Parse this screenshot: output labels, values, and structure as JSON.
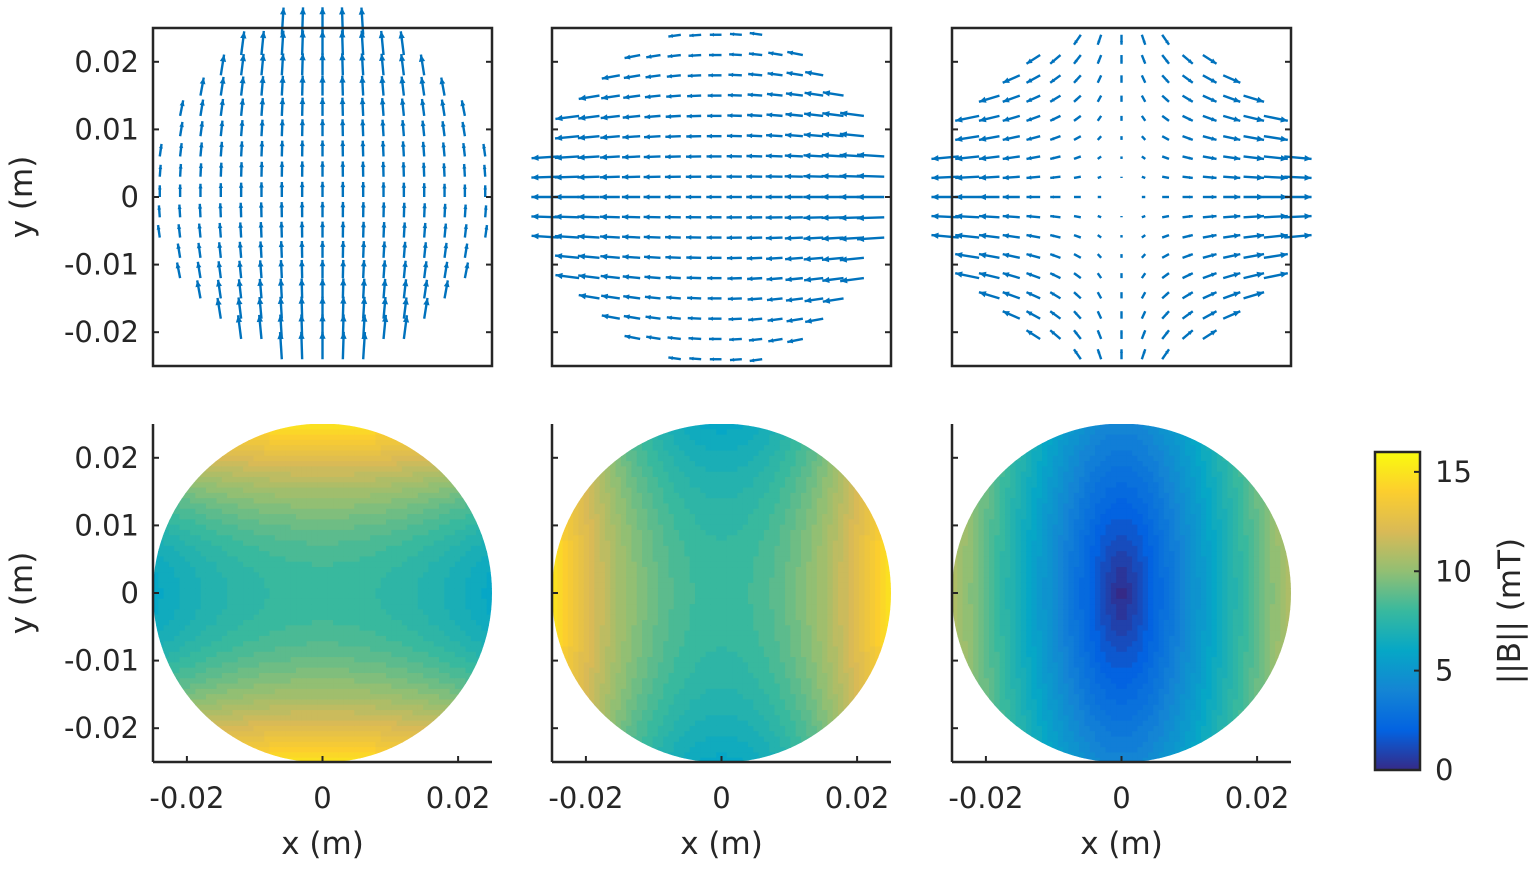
{
  "chart_data": [
    {
      "type": "quiver",
      "panel": "top-left",
      "xlim": [
        -0.025,
        0.025
      ],
      "ylim": [
        -0.025,
        0.025
      ],
      "ylabel": "y (m)",
      "yticks": [
        "0.02",
        "0.01",
        "0",
        "-0.01",
        "-0.02"
      ],
      "ytick_values": [
        0.02,
        0.01,
        0,
        -0.01,
        -0.02
      ],
      "grid_step": 0.003,
      "domain": "disk radius 0.025 m",
      "color": "#0072BD",
      "field_mT": {
        "Bx": {
          "xy": -6400
        },
        "By": {
          "const": 8,
          "x2": -3200,
          "y2": 11200
        }
      }
    },
    {
      "type": "quiver",
      "panel": "top-middle",
      "xlim": [
        -0.025,
        0.025
      ],
      "ylim": [
        -0.025,
        0.025
      ],
      "grid_step": 0.003,
      "domain": "disk radius 0.025 m",
      "color": "#0072BD",
      "field_mT": {
        "Bx": {
          "const": -8,
          "x2": -11200,
          "y2": 3200
        },
        "By": {
          "xy": 6400
        }
      }
    },
    {
      "type": "quiver",
      "panel": "top-right",
      "xlim": [
        -0.025,
        0.025
      ],
      "ylim": [
        -0.025,
        0.025
      ],
      "grid_step": 0.003,
      "domain": "disk radius 0.025 m",
      "color": "#0072BD",
      "field_mT": {
        "Bx": {
          "x": 440
        },
        "By": {
          "y": -160
        }
      }
    },
    {
      "type": "heatmap",
      "panel": "bottom-left",
      "source": "top-left",
      "quantity": "||B||",
      "xlim": [
        -0.025,
        0.025
      ],
      "ylim": [
        -0.025,
        0.025
      ],
      "xlabel": "x (m)",
      "ylabel": "y (m)",
      "xticks": [
        "-0.02",
        "0",
        "0.02"
      ],
      "xtick_values": [
        -0.02,
        0,
        0.02
      ],
      "yticks": [
        "0.02",
        "0.01",
        "0",
        "-0.01",
        "-0.02"
      ],
      "ytick_values": [
        0.02,
        0.01,
        0,
        -0.01,
        -0.02
      ]
    },
    {
      "type": "heatmap",
      "panel": "bottom-middle",
      "source": "top-middle",
      "quantity": "||B||",
      "xlim": [
        -0.025,
        0.025
      ],
      "ylim": [
        -0.025,
        0.025
      ],
      "xlabel": "x (m)",
      "xticks": [
        "-0.02",
        "0",
        "0.02"
      ],
      "xtick_values": [
        -0.02,
        0,
        0.02
      ]
    },
    {
      "type": "heatmap",
      "panel": "bottom-right",
      "source": "top-right",
      "quantity": "||B||",
      "xlim": [
        -0.025,
        0.025
      ],
      "ylim": [
        -0.025,
        0.025
      ],
      "xlabel": "x (m)",
      "xticks": [
        "-0.02",
        "0",
        "0.02"
      ],
      "xtick_values": [
        -0.02,
        0,
        0.02
      ]
    }
  ],
  "colorbar": {
    "label": "||B|| (mT)",
    "range": [
      0,
      16
    ],
    "ticks": [
      "0",
      "5",
      "10",
      "15"
    ],
    "tick_values": [
      0,
      5,
      10,
      15
    ],
    "colormap": "parula",
    "stops": [
      "#352A87",
      "#0363E1",
      "#1485D4",
      "#06A7C6",
      "#38B99E",
      "#92BF73",
      "#D9BA56",
      "#FCCE2E",
      "#F9FB0E"
    ]
  }
}
